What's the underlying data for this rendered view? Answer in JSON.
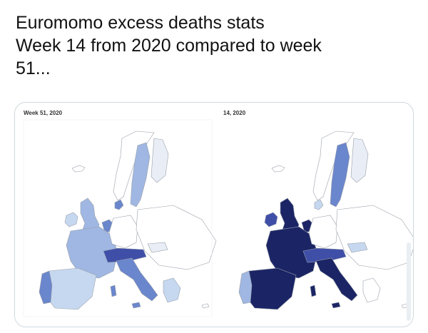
{
  "tweet": {
    "lines": [
      "Euromomo excess deaths stats",
      "Week 14 from 2020 compared to week",
      "51..."
    ]
  },
  "media": {
    "left_map_label": "Week 51, 2020",
    "right_map_label": "14, 2020"
  },
  "colors": {
    "none": "#ffffff",
    "low": "#e9edf5",
    "light": "#c6d8f0",
    "moderate": "#9fb7e2",
    "high": "#6a86cc",
    "very_high": "#3f4fa8",
    "extreme": "#1b2565",
    "border": "#9aa0aa"
  }
}
